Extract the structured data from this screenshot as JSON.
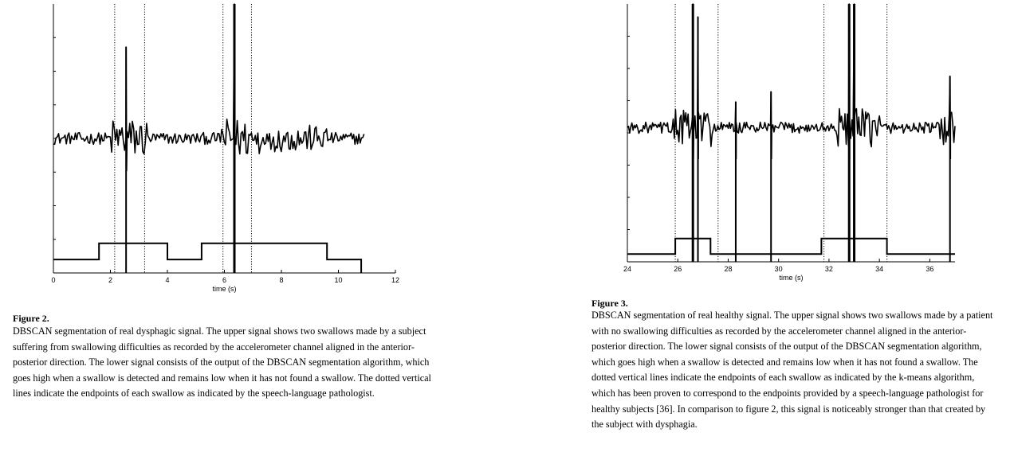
{
  "figures": [
    {
      "label": "Figure 2.",
      "caption": "DBSCAN segmentation of real dysphagic signal. The upper signal shows two swallows made by a subject suffering from swallowing difficulties as recorded by the accelerometer channel aligned in the anterior-posterior direction. The lower signal consists of the output of the DBSCAN segmentation algorithm, which goes high when a swallow is detected and remains low when it has not found a swallow. The dotted vertical lines indicate the endpoints of each swallow as indicated by the speech-language pathologist.",
      "chart_data": {
        "type": "line",
        "xlabel": "time (s)",
        "ylabel": "",
        "xlim": [
          0,
          12
        ],
        "xticks": [
          0,
          2,
          4,
          6,
          8,
          10,
          12
        ],
        "y_tick_labels_shown": false,
        "grid": false,
        "series": [
          {
            "kind": "accelerometer-signal",
            "x_range": [
              0,
              10.9
            ],
            "baseline_level": 0.5,
            "spikes": [
              {
                "x": 2.55,
                "peak": 0.84
              },
              {
                "x": 6.35,
                "peak": 1.0
              }
            ],
            "activity_bursts": [
              {
                "x_start": 2.0,
                "x_end": 3.3,
                "amplitude": "high"
              },
              {
                "x_start": 5.9,
                "x_end": 7.3,
                "amplitude": "high"
              },
              {
                "x_start": 7.6,
                "x_end": 9.6,
                "amplitude": "medium"
              }
            ]
          },
          {
            "kind": "segmentation-output",
            "x": [
              0,
              1.6,
              1.6,
              4.0,
              4.0,
              5.2,
              5.2,
              9.6,
              9.6,
              10.8,
              10.8
            ],
            "y": [
              0.05,
              0.05,
              0.11,
              0.11,
              0.05,
              0.05,
              0.11,
              0.11,
              0.05,
              0.05,
              0
            ]
          }
        ],
        "vertical_markers": [
          2.15,
          3.2,
          5.95,
          6.95
        ],
        "marker_style": "dotted"
      }
    },
    {
      "label": "Figure 3.",
      "caption": "DBSCAN segmentation of real healthy signal. The upper signal shows two swallows made by a patient with no swallowing difficulties as recorded by the accelerometer channel aligned in the anterior-posterior direction. The lower signal consists of the output of the DBSCAN segmentation algorithm, which goes high when a swallow is detected and remains low when it has not found a swallow. The dotted vertical lines indicate the endpoints of each swallow as indicated by the k-means algorithm, which has been proven to correspond to the endpoints provided by a speech-language pathologist for healthy subjects [36]. In comparison to figure 2, this signal is noticeably stronger than that created by the subject with dysphagia.",
      "chart_data": {
        "type": "line",
        "xlabel": "time (s)",
        "ylabel": "",
        "xlim": [
          24,
          37
        ],
        "xticks": [
          24,
          26,
          28,
          30,
          32,
          34,
          36
        ],
        "y_tick_labels_shown": false,
        "grid": false,
        "series": [
          {
            "kind": "accelerometer-signal",
            "x_range": [
              24,
              37
            ],
            "baseline_level": 0.52,
            "spikes": [
              {
                "x": 26.6,
                "peak": 1.0
              },
              {
                "x": 26.8,
                "peak": 0.95
              },
              {
                "x": 32.8,
                "peak": 1.0
              },
              {
                "x": 33.0,
                "peak": 1.0
              },
              {
                "x": 29.7,
                "peak": 0.66
              },
              {
                "x": 28.3,
                "peak": 0.62
              },
              {
                "x": 36.8,
                "peak": 0.72
              }
            ],
            "activity_bursts": [
              {
                "x_start": 25.8,
                "x_end": 27.4,
                "amplitude": "high"
              },
              {
                "x_start": 32.3,
                "x_end": 34.0,
                "amplitude": "high"
              },
              {
                "x_start": 36.4,
                "x_end": 37.0,
                "amplitude": "high"
              }
            ]
          },
          {
            "kind": "segmentation-output",
            "x": [
              24,
              25.9,
              25.9,
              27.3,
              27.3,
              31.7,
              31.7,
              34.3,
              34.3,
              37
            ],
            "y": [
              0.03,
              0.03,
              0.09,
              0.09,
              0.03,
              0.03,
              0.09,
              0.09,
              0.03,
              0.03
            ]
          }
        ],
        "vertical_markers": [
          25.9,
          27.6,
          31.8,
          34.3
        ],
        "marker_style": "dotted"
      }
    }
  ]
}
